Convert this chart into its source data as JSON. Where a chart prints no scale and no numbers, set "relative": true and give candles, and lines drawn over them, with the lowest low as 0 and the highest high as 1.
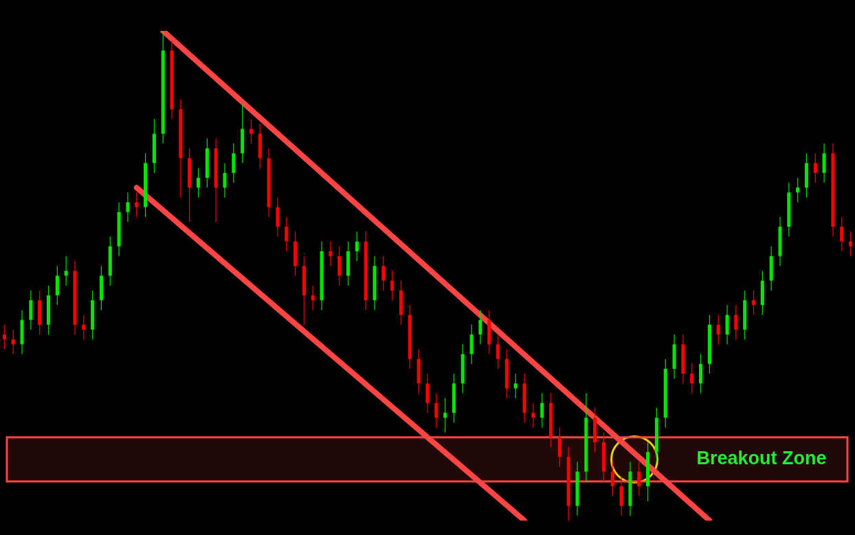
{
  "chart_data": {
    "type": "candlestick",
    "relative": true,
    "categories": [
      null,
      null,
      null,
      null,
      null,
      null,
      null,
      null,
      null,
      null,
      null,
      null,
      null,
      null,
      null,
      null,
      null,
      null,
      null,
      null,
      null,
      null,
      null,
      null,
      null,
      null,
      null,
      null,
      null,
      null,
      null,
      null,
      null,
      null,
      null,
      null,
      null,
      null,
      null,
      null,
      null,
      null,
      null,
      null,
      null,
      null,
      null,
      null,
      null,
      null,
      null,
      null,
      null,
      null,
      null,
      null,
      null,
      null,
      null,
      null,
      null,
      null,
      null,
      null,
      null,
      null,
      null,
      null,
      null,
      null,
      null,
      null,
      null,
      null,
      null,
      null,
      null,
      null,
      null,
      null,
      null,
      null,
      null,
      null,
      null,
      null,
      null,
      null,
      null,
      null,
      null,
      null,
      null,
      null,
      null,
      null,
      null
    ],
    "ohlc": [
      [
        0.38,
        0.4,
        0.35,
        0.37
      ],
      [
        0.37,
        0.39,
        0.34,
        0.36
      ],
      [
        0.36,
        0.43,
        0.34,
        0.41
      ],
      [
        0.41,
        0.47,
        0.39,
        0.45
      ],
      [
        0.45,
        0.47,
        0.38,
        0.4
      ],
      [
        0.4,
        0.48,
        0.38,
        0.46
      ],
      [
        0.46,
        0.52,
        0.44,
        0.5
      ],
      [
        0.5,
        0.54,
        0.48,
        0.51
      ],
      [
        0.51,
        0.53,
        0.38,
        0.4
      ],
      [
        0.4,
        0.42,
        0.37,
        0.39
      ],
      [
        0.39,
        0.47,
        0.37,
        0.45
      ],
      [
        0.45,
        0.52,
        0.43,
        0.5
      ],
      [
        0.5,
        0.58,
        0.48,
        0.56
      ],
      [
        0.56,
        0.65,
        0.54,
        0.63
      ],
      [
        0.63,
        0.67,
        0.61,
        0.65
      ],
      [
        0.65,
        0.67,
        0.62,
        0.64
      ],
      [
        0.64,
        0.75,
        0.62,
        0.73
      ],
      [
        0.73,
        0.82,
        0.71,
        0.79
      ],
      [
        0.79,
        1.0,
        0.77,
        0.96
      ],
      [
        0.96,
        0.98,
        0.82,
        0.84
      ],
      [
        0.84,
        0.86,
        0.66,
        0.74
      ],
      [
        0.74,
        0.76,
        0.61,
        0.68
      ],
      [
        0.68,
        0.72,
        0.66,
        0.7
      ],
      [
        0.7,
        0.78,
        0.68,
        0.76
      ],
      [
        0.76,
        0.78,
        0.61,
        0.68
      ],
      [
        0.68,
        0.73,
        0.66,
        0.71
      ],
      [
        0.71,
        0.77,
        0.69,
        0.75
      ],
      [
        0.75,
        0.85,
        0.73,
        0.8
      ],
      [
        0.8,
        0.82,
        0.77,
        0.79
      ],
      [
        0.79,
        0.81,
        0.72,
        0.74
      ],
      [
        0.74,
        0.76,
        0.62,
        0.64
      ],
      [
        0.64,
        0.66,
        0.58,
        0.6
      ],
      [
        0.6,
        0.62,
        0.55,
        0.57
      ],
      [
        0.57,
        0.59,
        0.5,
        0.52
      ],
      [
        0.52,
        0.54,
        0.4,
        0.46
      ],
      [
        0.46,
        0.48,
        0.43,
        0.45
      ],
      [
        0.45,
        0.57,
        0.43,
        0.55
      ],
      [
        0.55,
        0.57,
        0.52,
        0.54
      ],
      [
        0.54,
        0.56,
        0.48,
        0.5
      ],
      [
        0.5,
        0.57,
        0.48,
        0.55
      ],
      [
        0.55,
        0.59,
        0.53,
        0.57
      ],
      [
        0.57,
        0.59,
        0.43,
        0.45
      ],
      [
        0.45,
        0.54,
        0.43,
        0.52
      ],
      [
        0.52,
        0.54,
        0.47,
        0.49
      ],
      [
        0.49,
        0.51,
        0.45,
        0.47
      ],
      [
        0.47,
        0.49,
        0.4,
        0.42
      ],
      [
        0.42,
        0.44,
        0.31,
        0.33
      ],
      [
        0.33,
        0.35,
        0.26,
        0.28
      ],
      [
        0.28,
        0.3,
        0.22,
        0.24
      ],
      [
        0.24,
        0.26,
        0.19,
        0.21
      ],
      [
        0.21,
        0.25,
        0.18,
        0.22
      ],
      [
        0.22,
        0.3,
        0.2,
        0.28
      ],
      [
        0.28,
        0.36,
        0.26,
        0.34
      ],
      [
        0.34,
        0.4,
        0.32,
        0.38
      ],
      [
        0.38,
        0.43,
        0.36,
        0.41
      ],
      [
        0.41,
        0.43,
        0.34,
        0.36
      ],
      [
        0.36,
        0.38,
        0.31,
        0.33
      ],
      [
        0.33,
        0.35,
        0.25,
        0.27
      ],
      [
        0.27,
        0.3,
        0.25,
        0.28
      ],
      [
        0.28,
        0.3,
        0.2,
        0.22
      ],
      [
        0.22,
        0.24,
        0.19,
        0.21
      ],
      [
        0.21,
        0.26,
        0.19,
        0.24
      ],
      [
        0.24,
        0.26,
        0.15,
        0.17
      ],
      [
        0.17,
        0.19,
        0.11,
        0.13
      ],
      [
        0.13,
        0.15,
        0.0,
        0.03
      ],
      [
        0.03,
        0.12,
        0.01,
        0.1
      ],
      [
        0.1,
        0.26,
        0.08,
        0.21
      ],
      [
        0.21,
        0.23,
        0.14,
        0.16
      ],
      [
        0.16,
        0.18,
        0.08,
        0.1
      ],
      [
        0.1,
        0.12,
        0.05,
        0.07
      ],
      [
        0.07,
        0.09,
        0.01,
        0.03
      ],
      [
        0.03,
        0.12,
        0.01,
        0.1
      ],
      [
        0.1,
        0.12,
        0.05,
        0.07
      ],
      [
        0.07,
        0.16,
        0.04,
        0.14
      ],
      [
        0.14,
        0.23,
        0.12,
        0.21
      ],
      [
        0.21,
        0.33,
        0.19,
        0.31
      ],
      [
        0.31,
        0.38,
        0.29,
        0.36
      ],
      [
        0.36,
        0.38,
        0.28,
        0.3
      ],
      [
        0.3,
        0.32,
        0.26,
        0.28
      ],
      [
        0.28,
        0.34,
        0.26,
        0.32
      ],
      [
        0.32,
        0.42,
        0.3,
        0.4
      ],
      [
        0.4,
        0.42,
        0.36,
        0.38
      ],
      [
        0.38,
        0.44,
        0.36,
        0.42
      ],
      [
        0.42,
        0.44,
        0.37,
        0.39
      ],
      [
        0.39,
        0.47,
        0.37,
        0.45
      ],
      [
        0.45,
        0.47,
        0.42,
        0.44
      ],
      [
        0.44,
        0.51,
        0.42,
        0.49
      ],
      [
        0.49,
        0.56,
        0.47,
        0.54
      ],
      [
        0.54,
        0.62,
        0.52,
        0.6
      ],
      [
        0.6,
        0.69,
        0.58,
        0.67
      ],
      [
        0.67,
        0.7,
        0.65,
        0.68
      ],
      [
        0.68,
        0.75,
        0.66,
        0.73
      ],
      [
        0.73,
        0.75,
        0.69,
        0.71
      ],
      [
        0.71,
        0.77,
        0.69,
        0.75
      ],
      [
        0.75,
        0.77,
        0.58,
        0.6
      ],
      [
        0.6,
        0.62,
        0.55,
        0.57
      ],
      [
        0.57,
        0.59,
        0.54,
        0.56
      ]
    ],
    "colors": [
      "#ff0000",
      "#ff0000",
      "#00e600",
      "#00e600",
      "#ff0000",
      "#00e600",
      "#00e600",
      "#00e600",
      "#ff0000",
      "#ff0000",
      "#00e600",
      "#00e600",
      "#00e600",
      "#00e600",
      "#00e600",
      "#ff0000",
      "#00e600",
      "#00e600",
      "#00e600",
      "#ff0000",
      "#ff0000",
      "#ff0000",
      "#00e600",
      "#00e600",
      "#ff0000",
      "#00e600",
      "#00e600",
      "#00e600",
      "#ff0000",
      "#ff0000",
      "#ff0000",
      "#ff0000",
      "#ff0000",
      "#ff0000",
      "#ff0000",
      "#ff0000",
      "#00e600",
      "#ff0000",
      "#ff0000",
      "#00e600",
      "#00e600",
      "#ff0000",
      "#00e600",
      "#ff0000",
      "#ff0000",
      "#ff0000",
      "#ff0000",
      "#ff0000",
      "#ff0000",
      "#ff0000",
      "#00e600",
      "#00e600",
      "#00e600",
      "#00e600",
      "#00e600",
      "#ff0000",
      "#ff0000",
      "#ff0000",
      "#00e600",
      "#ff0000",
      "#ff0000",
      "#00e600",
      "#ff0000",
      "#ff0000",
      "#ff0000",
      "#00e600",
      "#00e600",
      "#ff0000",
      "#ff0000",
      "#ff0000",
      "#ff0000",
      "#00e600",
      "#ff0000",
      "#00e600",
      "#00e600",
      "#00e600",
      "#00e600",
      "#ff0000",
      "#ff0000",
      "#00e600",
      "#00e600",
      "#ff0000",
      "#00e600",
      "#ff0000",
      "#00e600",
      "#ff0000",
      "#00e600",
      "#00e600",
      "#00e600",
      "#00e600",
      "#00e600",
      "#00e600",
      "#ff0000",
      "#00e600",
      "#ff0000",
      "#ff0000",
      "#ff0000"
    ],
    "series": [
      {
        "type": "line",
        "color": "#ff4444",
        "values": [
          null,
          null,
          null,
          null,
          null,
          null,
          null,
          null,
          null,
          null,
          null,
          null,
          null,
          null,
          null,
          null,
          null,
          null,
          1.0,
          null,
          null,
          null,
          null,
          null,
          null,
          null,
          null,
          null,
          null,
          null,
          null,
          null,
          null,
          null,
          null,
          null,
          null,
          null,
          null,
          null,
          null,
          null,
          null,
          null,
          null,
          null,
          null,
          null,
          null,
          null,
          null,
          null,
          null,
          null,
          null,
          null,
          null,
          null,
          null,
          null,
          null,
          null,
          null,
          null,
          null,
          null,
          null,
          null,
          null,
          null,
          null,
          null,
          null,
          null,
          null,
          null,
          null,
          null,
          null,
          null,
          0.0,
          null,
          null,
          null,
          null,
          null,
          null,
          null,
          null,
          null,
          null,
          null,
          null,
          null,
          null,
          null,
          null
        ]
      },
      {
        "type": "line",
        "color": "#ff4444",
        "values": [
          null,
          null,
          null,
          null,
          null,
          null,
          null,
          null,
          null,
          null,
          null,
          null,
          null,
          null,
          null,
          0.68,
          null,
          null,
          null,
          null,
          null,
          null,
          null,
          null,
          null,
          null,
          null,
          null,
          null,
          null,
          null,
          null,
          null,
          null,
          null,
          null,
          null,
          null,
          null,
          null,
          null,
          null,
          null,
          null,
          null,
          null,
          null,
          null,
          null,
          null,
          null,
          null,
          null,
          null,
          null,
          null,
          null,
          null,
          null,
          0.0,
          null,
          null,
          null,
          null,
          null,
          null,
          null,
          null,
          null,
          null,
          null,
          null,
          null,
          null,
          null,
          null,
          null,
          null,
          null,
          null,
          null,
          null,
          null,
          null,
          null,
          null,
          null,
          null,
          null,
          null,
          null,
          null,
          null,
          null,
          null,
          null,
          null
        ]
      }
    ],
    "bands": [
      {
        "axis": "y",
        "from": 0.08,
        "to": 0.17,
        "label": "Breakout Zone",
        "color": "#ff4444"
      }
    ]
  }
}
